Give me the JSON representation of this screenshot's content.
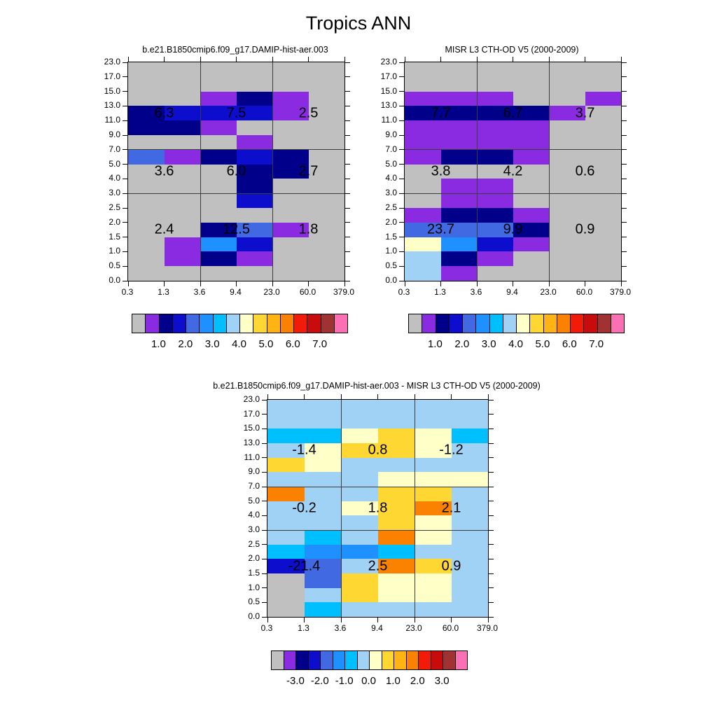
{
  "main_title": "Tropics ANN",
  "palette": {
    "G": "#C0C0C0",
    "P": "#8A2BE2",
    "N": "#00008B",
    "B": "#0D0DCE",
    "R": "#4169E1",
    "D": "#1E90FF",
    "C": "#00BFFF",
    "L": "#A0D2F6",
    "K": "#FFFFC8",
    "Y": "#FFD732",
    "A": "#FFB414",
    "O": "#FB8200",
    "E": "#F21B0A",
    "H": "#C80B0B",
    "W": "#A03232",
    "I": "#FB70B4"
  },
  "chart_data": {
    "type": "heatmap",
    "title": "Tropics ANN",
    "x_bin_edges": [
      0.3,
      1.3,
      3.6,
      9.4,
      23.0,
      60.0,
      379.0
    ],
    "y_bin_edges": [
      0.0,
      0.5,
      1.0,
      1.5,
      2.0,
      2.5,
      3.0,
      4.0,
      5.0,
      7.0,
      9.0,
      11.0,
      13.0,
      15.0,
      17.0,
      23.0
    ],
    "x_tick_labels": [
      "0.3",
      "1.3",
      "3.6",
      "9.4",
      "23.0",
      "60.0",
      "379.0"
    ],
    "y_tick_labels": [
      "23.0",
      "17.0",
      "15.0",
      "13.0",
      "11.0",
      "9.0",
      "7.0",
      "5.0",
      "4.0",
      "3.0",
      "2.5",
      "2.0",
      "1.5",
      "1.0",
      "0.5",
      "0.0"
    ],
    "grid_section_lines": {
      "x_at": [
        "3.6",
        "23.0"
      ],
      "y_at": [
        "7.0",
        "3.0"
      ]
    },
    "colorbar_box_step": 0.5,
    "panels": [
      {
        "id": "model",
        "title": "b.e21.B1850cmip6.f09_g17.DAMIP-hist-aer.003",
        "grid": [
          "GGGGGG",
          "GGGGGG",
          "GGPNPG",
          "NBBBPG",
          "NNPGGG",
          "GGGPGG",
          "RPNBNG",
          "GGGNNG",
          "GGGNGG",
          "GGGBGG",
          "GGGGGG",
          "GGNRPG",
          "GPDBGG",
          "GPNPGG",
          "GGGGGG"
        ],
        "section_labels": [
          [
            "6.3",
            "7.5",
            "2.5"
          ],
          [
            "3.6",
            "6.0",
            "2.7"
          ],
          [
            "2.4",
            "12.5",
            "1.8"
          ]
        ],
        "colorbar_labels": [
          "1.0",
          "2.0",
          "3.0",
          "4.0",
          "5.0",
          "6.0",
          "7.0"
        ]
      },
      {
        "id": "obs",
        "title": "MISR L3 CTH-OD V5 (2000-2009)",
        "grid": [
          "GGGGGG",
          "GGGGGG",
          "PPPGGP",
          "NNNNPG",
          "PPPPGG",
          "PPPPGG",
          "PNNPGG",
          "GGGGGG",
          "GPPGGG",
          "GPPGGG",
          "PNNPGG",
          "RRRNGG",
          "KDBPGG",
          "LNPGGG",
          "LPGGGG"
        ],
        "section_labels": [
          [
            "7.7",
            "6.7",
            "3.7"
          ],
          [
            "3.8",
            "4.2",
            "0.6"
          ],
          [
            "23.7",
            "9.9",
            "0.9"
          ]
        ],
        "colorbar_labels": [
          "1.0",
          "2.0",
          "3.0",
          "4.0",
          "5.0",
          "6.0",
          "7.0"
        ]
      },
      {
        "id": "diff",
        "title": "b.e21.B1850cmip6.f09_g17.DAMIP-hist-aer.003 - MISR L3 CTH-OD V5 (2000-2009)",
        "grid": [
          "LLLLLL",
          "LLLLLL",
          "CCKYKC",
          "LKYYKL",
          "YKLLLL",
          "LLLKKK",
          "OLLYYL",
          "LLKYOL",
          "LLLYKL",
          "LCLOKL",
          "CDDCLL",
          "BRLOYL",
          "GRYKKL",
          "GLYKKL",
          "GCLLLL"
        ],
        "section_labels": [
          [
            "-1.4",
            "0.8",
            "-1.2"
          ],
          [
            "-0.2",
            "1.8",
            "2.1"
          ],
          [
            "-21.4",
            "2.5",
            "0.9"
          ]
        ],
        "colorbar_labels": [
          "-3.0",
          "-2.0",
          "-1.0",
          "0.0",
          "1.0",
          "2.0",
          "3.0"
        ]
      }
    ],
    "colorbar_sequence": [
      "G",
      "P",
      "N",
      "B",
      "R",
      "D",
      "C",
      "L",
      "K",
      "Y",
      "A",
      "O",
      "E",
      "H",
      "W",
      "I"
    ]
  }
}
